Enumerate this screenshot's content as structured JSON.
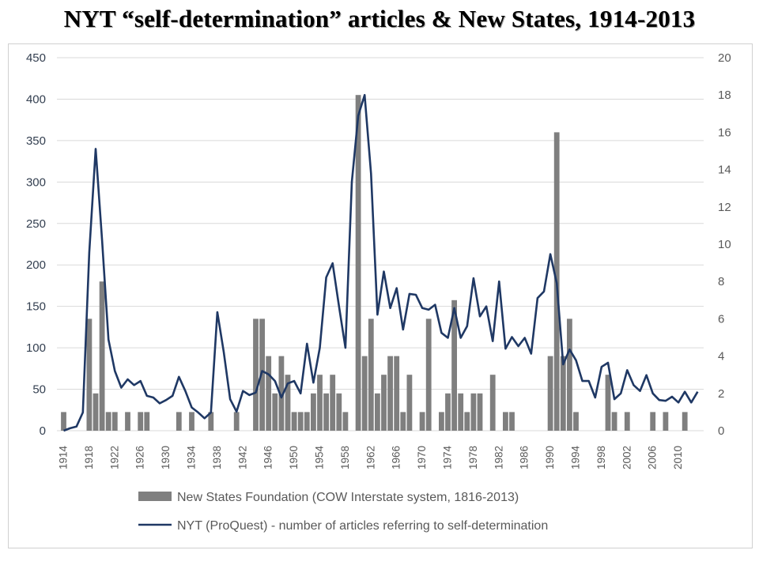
{
  "chart_data": {
    "type": "bar+line",
    "title": "NYT “self-determination” articles & New States, 1914-2013",
    "y_left": {
      "min": 0,
      "max": 450,
      "ticks": [
        0,
        50,
        100,
        150,
        200,
        250,
        300,
        350,
        400,
        450
      ]
    },
    "y_right": {
      "min": 0,
      "max": 20,
      "ticks": [
        0,
        2,
        4,
        6,
        8,
        10,
        12,
        14,
        16,
        18,
        20
      ]
    },
    "x_tick_labels": [
      "1914",
      "1918",
      "1922",
      "1926",
      "1930",
      "1934",
      "1938",
      "1942",
      "1946",
      "1950",
      "1954",
      "1958",
      "1962",
      "1966",
      "1970",
      "1974",
      "1978",
      "1982",
      "1986",
      "1990",
      "1994",
      "1998",
      "2002",
      "2006",
      "2010"
    ],
    "grid": "horizontal",
    "legend_position": "bottom",
    "series": [
      {
        "name": "New States Foundation (COW Interstate system, 1816-2013)",
        "type": "bar",
        "axis": "right",
        "color": "#7f7f7f",
        "x": [
          1914,
          1918,
          1919,
          1920,
          1921,
          1922,
          1924,
          1926,
          1927,
          1932,
          1934,
          1937,
          1941,
          1944,
          1945,
          1946,
          1947,
          1948,
          1949,
          1950,
          1951,
          1952,
          1953,
          1954,
          1955,
          1956,
          1957,
          1958,
          1960,
          1961,
          1962,
          1963,
          1964,
          1965,
          1966,
          1967,
          1968,
          1970,
          1971,
          1973,
          1974,
          1975,
          1976,
          1977,
          1978,
          1979,
          1981,
          1983,
          1984,
          1990,
          1991,
          1992,
          1993,
          1994,
          1999,
          2000,
          2002,
          2006,
          2008,
          2011
        ],
        "values": [
          1,
          6,
          2,
          8,
          1,
          1,
          1,
          1,
          1,
          1,
          1,
          1,
          1,
          6,
          6,
          4,
          2,
          4,
          3,
          1,
          1,
          1,
          2,
          3,
          2,
          3,
          2,
          1,
          18,
          4,
          6,
          2,
          3,
          4,
          4,
          1,
          3,
          1,
          6,
          1,
          2,
          7,
          2,
          1,
          2,
          2,
          3,
          1,
          1,
          4,
          16,
          4,
          6,
          1,
          3,
          1,
          1,
          1,
          1,
          1
        ]
      },
      {
        "name": "NYT (ProQuest) - number of articles referring to self-determination",
        "type": "line",
        "axis": "left",
        "color": "#1f3864",
        "x": [
          1914,
          1915,
          1916,
          1917,
          1918,
          1919,
          1920,
          1921,
          1922,
          1923,
          1924,
          1925,
          1926,
          1927,
          1928,
          1929,
          1930,
          1931,
          1932,
          1933,
          1934,
          1935,
          1936,
          1937,
          1938,
          1939,
          1940,
          1941,
          1942,
          1943,
          1944,
          1945,
          1946,
          1947,
          1948,
          1949,
          1950,
          1951,
          1952,
          1953,
          1954,
          1955,
          1956,
          1957,
          1958,
          1959,
          1960,
          1961,
          1962,
          1963,
          1964,
          1965,
          1966,
          1967,
          1968,
          1969,
          1970,
          1971,
          1972,
          1973,
          1974,
          1975,
          1976,
          1977,
          1978,
          1979,
          1980,
          1981,
          1982,
          1983,
          1984,
          1985,
          1986,
          1987,
          1988,
          1989,
          1990,
          1991,
          1992,
          1993,
          1994,
          1995,
          1996,
          1997,
          1998,
          1999,
          2000,
          2001,
          2002,
          2003,
          2004,
          2005,
          2006,
          2007,
          2008,
          2009,
          2010,
          2011,
          2012,
          2013
        ],
        "values": [
          0,
          3,
          5,
          22,
          215,
          340,
          230,
          110,
          72,
          52,
          62,
          55,
          60,
          42,
          40,
          33,
          37,
          42,
          65,
          48,
          28,
          22,
          15,
          22,
          143,
          95,
          38,
          23,
          48,
          43,
          46,
          72,
          68,
          60,
          40,
          57,
          60,
          45,
          105,
          58,
          100,
          185,
          202,
          150,
          100,
          300,
          380,
          405,
          310,
          140,
          192,
          148,
          172,
          122,
          165,
          164,
          148,
          146,
          152,
          118,
          112,
          148,
          112,
          126,
          184,
          138,
          150,
          108,
          180,
          99,
          113,
          102,
          112,
          93,
          160,
          168,
          213,
          178,
          80,
          98,
          85,
          60,
          60,
          40,
          77,
          82,
          38,
          45,
          73,
          55,
          48,
          67,
          45,
          37,
          36,
          41,
          34,
          47,
          34,
          47
        ]
      }
    ]
  }
}
